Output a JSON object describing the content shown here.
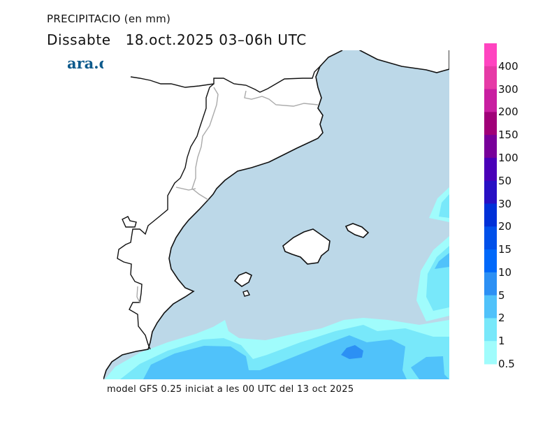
{
  "header": {
    "title": "PRECIPITACIO (en mm)",
    "subtitle_day": "Dissabte",
    "subtitle_date": "18.oct.2025 03–06h UTC",
    "logo": "ara.cat"
  },
  "footer": "model GFS 0.25 iniciat a les 00 UTC del 13 oct 2025",
  "map": {
    "sea_color": "#bcd8e8",
    "land_color": "#ffffff",
    "region": "Catalonia, Valencia, Balearic Islands"
  },
  "legend": {
    "unit": "mm",
    "labels": [
      "400",
      "300",
      "200",
      "150",
      "100",
      "50",
      "30",
      "20",
      "15",
      "10",
      "5",
      "2",
      "1",
      "0.5"
    ],
    "colors": [
      "#ff44c0",
      "#e63aa6",
      "#c81ea0",
      "#a00078",
      "#78009a",
      "#4a00b8",
      "#2810c4",
      "#0030d8",
      "#0050ea",
      "#0068fa",
      "#2c90f4",
      "#50c2fa",
      "#78e8fa",
      "#a0fcfc"
    ]
  }
}
